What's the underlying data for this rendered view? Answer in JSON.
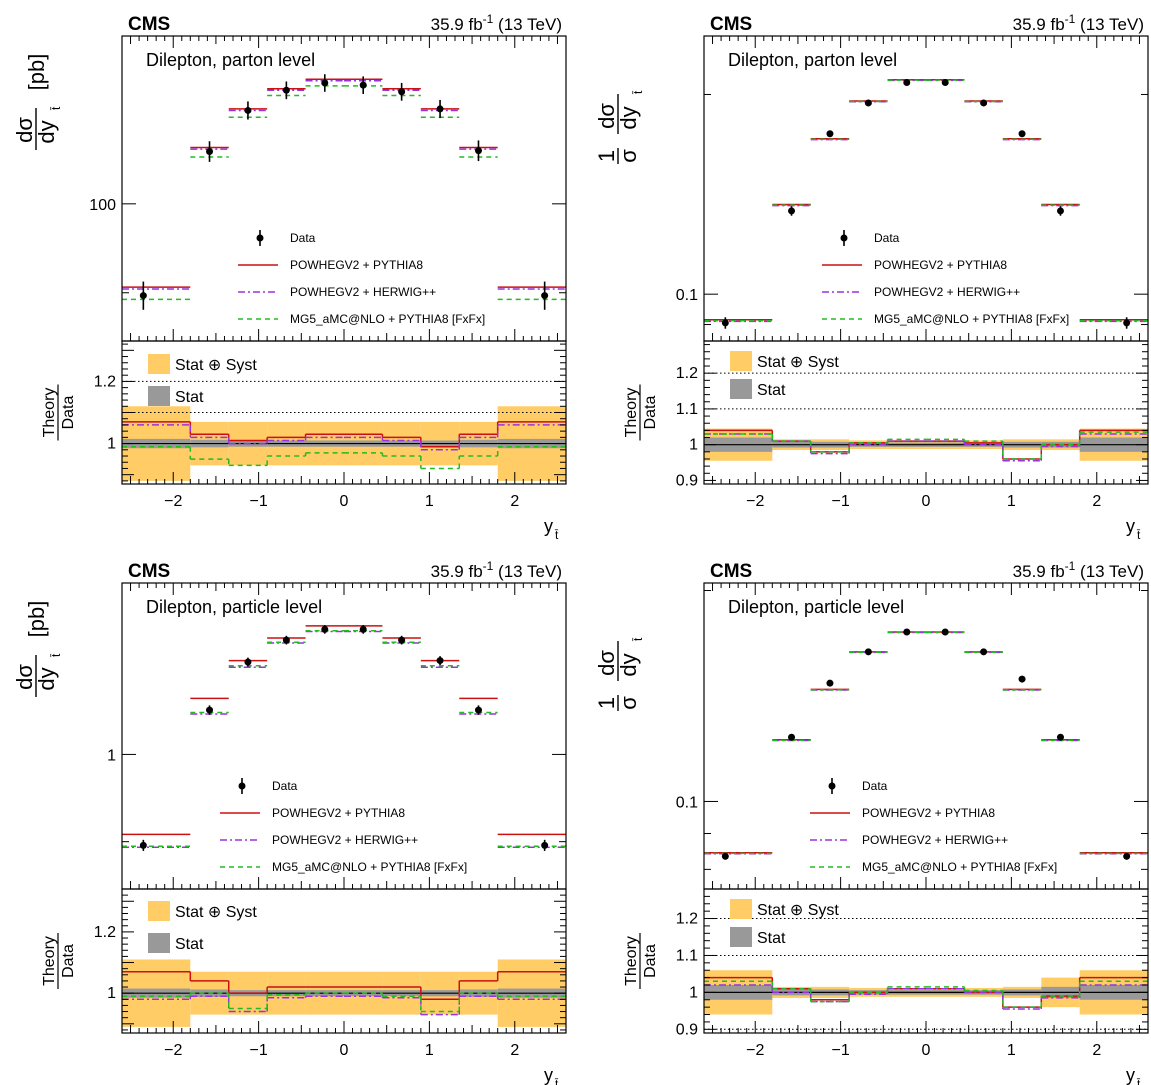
{
  "figure": {
    "cms_label": "CMS",
    "lumi_label": "35.9 fb",
    "lumi_exp": "-1",
    "energy_label": " (13 TeV)",
    "ratio_ylabel_num": "Theory",
    "ratio_ylabel_den": "Data",
    "xlabel_main": "y",
    "xlabel_sub": "t̄"
  },
  "legend": {
    "data": "Data",
    "pwg_py8": "POWHEGV2 + PYTHIA8",
    "pwg_hw": "POWHEGV2 + HERWIG++",
    "mg5": "MG5_aMC@NLO + PYTHIA8 [FxFx]",
    "stat_syst": "Stat ⊕ Syst",
    "stat": "Stat"
  },
  "colors": {
    "data": "#000000",
    "pwg_py8": "#cc1111",
    "pwg_hw": "#9933dd",
    "mg5": "#22bb22",
    "stat_syst_band": "#ffcc66",
    "stat_band": "#999999"
  },
  "chart_data": [
    {
      "type": "line",
      "panel": "top-left",
      "title": "Dilepton, parton level",
      "ylabel_main": "dσ",
      "ylabel_den": "dy",
      "ylabel_sub": "t̄",
      "ylabel_unit": "[pb]",
      "yscale": "log",
      "ylim": [
        85,
        122
      ],
      "ytick_labels": [
        {
          "value": 100,
          "label": "100"
        }
      ],
      "xlim": [
        -2.6,
        2.6
      ],
      "xticks": [
        -2,
        -1,
        0,
        1,
        2
      ],
      "bin_edges": [
        -2.6,
        -1.8,
        -1.35,
        -0.9,
        -0.45,
        0,
        0.45,
        0.9,
        1.35,
        1.8,
        2.6
      ],
      "data": {
        "values": [
          89.7,
          106.4,
          111.7,
          114.4,
          115.4,
          115.1,
          114.2,
          111.9,
          106.5,
          89.7
        ],
        "errors": [
          1.5,
          1.3,
          1.2,
          1.2,
          1.2,
          1.2,
          1.2,
          1.2,
          1.3,
          1.5
        ]
      },
      "series": [
        {
          "name": "POWHEGV2 + PYTHIA8",
          "values": [
            90.6,
            106.9,
            111.9,
            114.6,
            115.9,
            115.9,
            114.6,
            111.9,
            106.9,
            90.6
          ]
        },
        {
          "name": "POWHEGV2 + HERWIG++",
          "values": [
            90.4,
            106.7,
            111.7,
            114.4,
            115.7,
            115.7,
            114.4,
            111.7,
            106.7,
            90.4
          ]
        },
        {
          "name": "MG5_aMC@NLO + PYTHIA8 [FxFx]",
          "values": [
            89.3,
            105.7,
            110.8,
            113.7,
            115.0,
            115.0,
            113.7,
            110.8,
            105.7,
            89.3
          ]
        }
      ],
      "ratio": {
        "ylim": [
          0.87,
          1.33
        ],
        "yticks": [
          1.0,
          1.1,
          1.2
        ],
        "ytick_labels": [
          {
            "value": 1.0,
            "label": "1"
          },
          {
            "value": 1.2,
            "label": "1.2"
          }
        ],
        "dotted_lines": [
          1.1,
          1.2
        ],
        "stat_syst": [
          0.12,
          0.07,
          0.07,
          0.07,
          0.07,
          0.07,
          0.07,
          0.07,
          0.07,
          0.12
        ],
        "stat": [
          0.015,
          0.012,
          0.01,
          0.01,
          0.01,
          0.01,
          0.01,
          0.01,
          0.012,
          0.015
        ],
        "series": [
          {
            "name": "POWHEGV2 + PYTHIA8",
            "values": [
              1.07,
              1.03,
              1.01,
              1.02,
              1.03,
              1.03,
              1.02,
              0.99,
              1.03,
              1.07
            ]
          },
          {
            "name": "POWHEGV2 + HERWIG++",
            "values": [
              1.06,
              1.02,
              1.0,
              1.01,
              1.02,
              1.02,
              1.01,
              0.98,
              1.02,
              1.06
            ]
          },
          {
            "name": "MG5_aMC@NLO + PYTHIA8 [FxFx]",
            "values": [
              0.99,
              0.95,
              0.93,
              0.96,
              0.97,
              0.97,
              0.96,
              0.92,
              0.96,
              0.99
            ]
          }
        ]
      }
    },
    {
      "type": "line",
      "panel": "top-right",
      "title": "Dilepton, parton level",
      "ylabel_norm": "1",
      "ylabel_sigma": "σ",
      "ylabel_main": "dσ",
      "ylabel_den": "dy",
      "ylabel_sub": "t̄",
      "yscale": "log",
      "ylim": [
        0.085,
        0.245
      ],
      "ytick_labels": [
        {
          "value": 0.1,
          "label": "0.1"
        }
      ],
      "xlim": [
        -2.6,
        2.6
      ],
      "xticks": [
        -2,
        -1,
        0,
        1,
        2
      ],
      "bin_edges": [
        -2.6,
        -1.8,
        -1.35,
        -0.9,
        -0.45,
        0,
        0.45,
        0.9,
        1.35,
        1.8,
        2.6
      ],
      "data": {
        "values": [
          0.0905,
          0.1335,
          0.1745,
          0.1942,
          0.2085,
          0.2085,
          0.1942,
          0.1745,
          0.1335,
          0.0905
        ],
        "errors": [
          0.0018,
          0.0022,
          0.002,
          0.002,
          0.0018,
          0.0018,
          0.002,
          0.002,
          0.0022,
          0.0018
        ]
      },
      "series": [
        {
          "name": "POWHEGV2 + PYTHIA8",
          "values": [
            0.0915,
            0.1365,
            0.1715,
            0.1955,
            0.2105,
            0.2105,
            0.1955,
            0.1715,
            0.1365,
            0.0915
          ]
        },
        {
          "name": "POWHEGV2 + HERWIG++",
          "values": [
            0.091,
            0.136,
            0.171,
            0.195,
            0.21,
            0.21,
            0.195,
            0.171,
            0.136,
            0.091
          ]
        },
        {
          "name": "MG5_aMC@NLO + PYTHIA8 [FxFx]",
          "values": [
            0.0912,
            0.1362,
            0.1712,
            0.1952,
            0.2102,
            0.2102,
            0.1952,
            0.1712,
            0.1362,
            0.0912
          ]
        }
      ],
      "ratio": {
        "ylim": [
          0.89,
          1.29
        ],
        "yticks": [
          0.9,
          1.0,
          1.1,
          1.2
        ],
        "ytick_labels": [
          {
            "value": 0.9,
            "label": "0.9"
          },
          {
            "value": 1.0,
            "label": "1"
          },
          {
            "value": 1.1,
            "label": "1.1"
          },
          {
            "value": 1.2,
            "label": "1.2"
          }
        ],
        "dotted_lines": [
          1.1,
          1.2
        ],
        "stat_syst": [
          0.045,
          0.015,
          0.015,
          0.012,
          0.012,
          0.012,
          0.012,
          0.015,
          0.015,
          0.045
        ],
        "stat": [
          0.02,
          0.008,
          0.008,
          0.006,
          0.006,
          0.006,
          0.006,
          0.008,
          0.008,
          0.02
        ],
        "series": [
          {
            "name": "POWHEGV2 + PYTHIA8",
            "values": [
              1.04,
              1.01,
              0.98,
              1.005,
              1.01,
              1.01,
              1.005,
              0.96,
              1.0,
              1.04
            ]
          },
          {
            "name": "POWHEGV2 + HERWIG++",
            "values": [
              1.03,
              1.01,
              0.975,
              1.0,
              1.01,
              1.01,
              1.0,
              0.955,
              0.995,
              1.03
            ]
          },
          {
            "name": "MG5_aMC@NLO + PYTHIA8 [FxFx]",
            "values": [
              1.03,
              1.01,
              0.98,
              1.005,
              1.015,
              1.015,
              1.01,
              0.96,
              1.0,
              1.035
            ]
          }
        ]
      }
    },
    {
      "type": "line",
      "panel": "bottom-left",
      "title": "Dilepton, particle level",
      "ylabel_main": "dσ",
      "ylabel_den": "dy",
      "ylabel_sub": "t̄",
      "ylabel_unit": "[pb]",
      "yscale": "log",
      "ylim": [
        0.85,
        1.23
      ],
      "ytick_labels": [
        {
          "value": 1,
          "label": "1"
        }
      ],
      "xlim": [
        -2.6,
        2.6
      ],
      "xticks": [
        -2,
        -1,
        0,
        1,
        2
      ],
      "bin_edges": [
        -2.6,
        -1.8,
        -1.35,
        -0.9,
        -0.45,
        0,
        0.45,
        0.9,
        1.35,
        1.8,
        2.6
      ],
      "data": {
        "values": [
          0.896,
          1.055,
          1.118,
          1.148,
          1.163,
          1.163,
          1.148,
          1.12,
          1.055,
          0.896
        ],
        "errors": [
          0.006,
          0.006,
          0.006,
          0.006,
          0.006,
          0.006,
          0.006,
          0.006,
          0.006,
          0.006
        ]
      },
      "series": [
        {
          "name": "POWHEGV2 + PYTHIA8",
          "values": [
            0.908,
            1.07,
            1.12,
            1.151,
            1.168,
            1.168,
            1.151,
            1.12,
            1.07,
            0.908
          ]
        },
        {
          "name": "POWHEGV2 + HERWIG++",
          "values": [
            0.894,
            1.05,
            1.111,
            1.144,
            1.16,
            1.16,
            1.144,
            1.111,
            1.05,
            0.894
          ]
        },
        {
          "name": "MG5_aMC@NLO + PYTHIA8 [FxFx]",
          "values": [
            0.895,
            1.052,
            1.113,
            1.145,
            1.161,
            1.161,
            1.145,
            1.113,
            1.052,
            0.895
          ]
        }
      ],
      "ratio": {
        "ylim": [
          0.87,
          1.34
        ],
        "yticks": [
          1.0,
          1.1,
          1.2
        ],
        "ytick_labels": [
          {
            "value": 1.0,
            "label": "1"
          },
          {
            "value": 1.2,
            "label": "1.2"
          }
        ],
        "dotted_lines": [],
        "stat_syst": [
          0.11,
          0.07,
          0.07,
          0.07,
          0.07,
          0.07,
          0.07,
          0.07,
          0.07,
          0.11
        ],
        "stat": [
          0.015,
          0.012,
          0.01,
          0.01,
          0.01,
          0.01,
          0.01,
          0.01,
          0.012,
          0.015
        ],
        "series": [
          {
            "name": "POWHEGV2 + PYTHIA8",
            "values": [
              1.07,
              1.04,
              1.0,
              1.02,
              1.02,
              1.02,
              1.02,
              0.98,
              1.04,
              1.07
            ]
          },
          {
            "name": "POWHEGV2 + HERWIG++",
            "values": [
              0.98,
              0.99,
              0.94,
              0.985,
              0.99,
              0.99,
              0.985,
              0.93,
              0.99,
              0.98
            ]
          },
          {
            "name": "MG5_aMC@NLO + PYTHIA8 [FxFx]",
            "values": [
              0.99,
              1.0,
              0.95,
              0.995,
              1.0,
              1.0,
              0.99,
              0.94,
              1.0,
              0.99
            ]
          }
        ]
      }
    },
    {
      "type": "line",
      "panel": "bottom-right",
      "title": "Dilepton, particle level",
      "ylabel_norm": "1",
      "ylabel_sigma": "σ",
      "ylabel_main": "dσ",
      "ylabel_den": "dy",
      "ylabel_sub": "t̄",
      "yscale": "log",
      "ylim": [
        0.075,
        0.205
      ],
      "ytick_labels": [
        {
          "value": 0.1,
          "label": "0.1"
        }
      ],
      "xlim": [
        -2.6,
        2.6
      ],
      "xticks": [
        -2,
        -1,
        0,
        1,
        2
      ],
      "bin_edges": [
        -2.6,
        -1.8,
        -1.35,
        -0.9,
        -0.45,
        0,
        0.45,
        0.9,
        1.35,
        1.8,
        2.6
      ],
      "data": {
        "values": [
          0.0835,
          0.1235,
          0.1475,
          0.1635,
          0.1745,
          0.1745,
          0.1635,
          0.1495,
          0.1235,
          0.0835
        ],
        "errors": [
          0.0008,
          0.0009,
          0.0009,
          0.0009,
          0.0009,
          0.0009,
          0.0009,
          0.0009,
          0.0009,
          0.0008
        ]
      },
      "series": [
        {
          "name": "POWHEGV2 + PYTHIA8",
          "values": [
            0.0845,
            0.1225,
            0.1445,
            0.1635,
            0.1745,
            0.1745,
            0.1635,
            0.1445,
            0.1225,
            0.0845
          ]
        },
        {
          "name": "POWHEGV2 + HERWIG++",
          "values": [
            0.0842,
            0.1222,
            0.1442,
            0.1632,
            0.1742,
            0.1742,
            0.1632,
            0.1442,
            0.1222,
            0.0842
          ]
        },
        {
          "name": "MG5_aMC@NLO + PYTHIA8 [FxFx]",
          "values": [
            0.0843,
            0.1223,
            0.1443,
            0.1633,
            0.1743,
            0.1743,
            0.1633,
            0.1443,
            0.1223,
            0.0843
          ]
        }
      ],
      "ratio": {
        "ylim": [
          0.89,
          1.28
        ],
        "yticks": [
          0.9,
          1.0,
          1.1,
          1.2
        ],
        "ytick_labels": [
          {
            "value": 0.9,
            "label": "0.9"
          },
          {
            "value": 1.0,
            "label": "1"
          },
          {
            "value": 1.1,
            "label": "1.1"
          },
          {
            "value": 1.2,
            "label": "1.2"
          }
        ],
        "dotted_lines": [
          0.9,
          1.1,
          1.2
        ],
        "stat_syst": [
          0.06,
          0.015,
          0.015,
          0.012,
          0.012,
          0.012,
          0.012,
          0.015,
          0.04,
          0.06
        ],
        "stat": [
          0.02,
          0.008,
          0.008,
          0.006,
          0.006,
          0.006,
          0.006,
          0.008,
          0.015,
          0.02
        ],
        "series": [
          {
            "name": "POWHEGV2 + PYTHIA8",
            "values": [
              1.04,
              1.01,
              0.98,
              1.0,
              1.01,
              1.01,
              1.0,
              0.96,
              0.99,
              1.04
            ]
          },
          {
            "name": "POWHEGV2 + HERWIG++",
            "values": [
              1.02,
              1.0,
              0.975,
              0.995,
              1.01,
              1.01,
              1.0,
              0.955,
              0.985,
              1.02
            ]
          },
          {
            "name": "MG5_aMC@NLO + PYTHIA8 [FxFx]",
            "values": [
              1.03,
              1.01,
              0.975,
              1.0,
              1.015,
              1.015,
              1.005,
              0.96,
              0.99,
              1.03
            ]
          }
        ]
      }
    }
  ]
}
